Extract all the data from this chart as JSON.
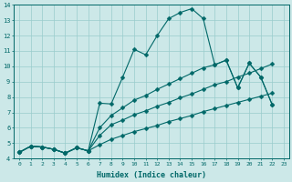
{
  "xlabel": "Humidex (Indice chaleur)",
  "xlim": [
    -0.5,
    23.5
  ],
  "ylim": [
    4,
    14
  ],
  "xticks": [
    0,
    1,
    2,
    3,
    4,
    5,
    6,
    7,
    8,
    9,
    10,
    11,
    12,
    13,
    14,
    15,
    16,
    17,
    18,
    19,
    20,
    21,
    22,
    23
  ],
  "yticks": [
    4,
    5,
    6,
    7,
    8,
    9,
    10,
    11,
    12,
    13,
    14
  ],
  "bg_color": "#cce8e8",
  "line_color": "#006868",
  "line1_x": [
    0,
    1,
    2,
    3,
    4,
    5,
    6,
    7,
    8,
    9,
    10,
    11,
    12,
    13,
    14,
    15,
    16,
    17,
    18,
    19,
    20,
    21,
    22
  ],
  "line1_y": [
    4.4,
    4.8,
    4.75,
    4.6,
    4.35,
    4.7,
    4.5,
    7.6,
    7.55,
    9.3,
    11.1,
    10.75,
    12.0,
    13.1,
    13.5,
    13.75,
    13.1,
    10.1,
    10.4,
    8.6,
    10.2,
    9.3,
    7.5
  ],
  "line2_x": [
    0,
    1,
    2,
    3,
    4,
    5,
    6,
    7,
    8,
    9,
    10,
    11,
    12,
    13,
    14,
    15,
    16,
    17,
    18,
    19,
    20,
    21,
    22
  ],
  "line2_y": [
    4.4,
    4.8,
    4.75,
    4.6,
    4.35,
    4.7,
    4.5,
    6.0,
    6.8,
    7.3,
    7.8,
    8.1,
    8.5,
    8.85,
    9.2,
    9.55,
    9.9,
    10.1,
    10.4,
    8.6,
    10.2,
    9.3,
    7.5
  ],
  "line3_x": [
    0,
    1,
    2,
    3,
    4,
    5,
    6,
    7,
    8,
    9,
    10,
    11,
    12,
    13,
    14,
    15,
    16,
    17,
    18,
    19,
    20,
    21,
    22
  ],
  "line3_y": [
    4.4,
    4.8,
    4.75,
    4.6,
    4.35,
    4.7,
    4.5,
    5.5,
    6.2,
    6.5,
    6.85,
    7.1,
    7.4,
    7.65,
    7.95,
    8.2,
    8.5,
    8.8,
    9.0,
    9.3,
    9.55,
    9.85,
    10.15
  ],
  "line4_x": [
    0,
    1,
    2,
    3,
    4,
    5,
    6,
    7,
    8,
    9,
    10,
    11,
    12,
    13,
    14,
    15,
    16,
    17,
    18,
    19,
    20,
    21,
    22
  ],
  "line4_y": [
    4.4,
    4.8,
    4.75,
    4.6,
    4.35,
    4.7,
    4.5,
    4.9,
    5.25,
    5.5,
    5.75,
    5.95,
    6.15,
    6.4,
    6.6,
    6.8,
    7.05,
    7.25,
    7.45,
    7.65,
    7.85,
    8.05,
    8.25
  ],
  "grid_color": "#99cccc",
  "markersize": 2.5
}
